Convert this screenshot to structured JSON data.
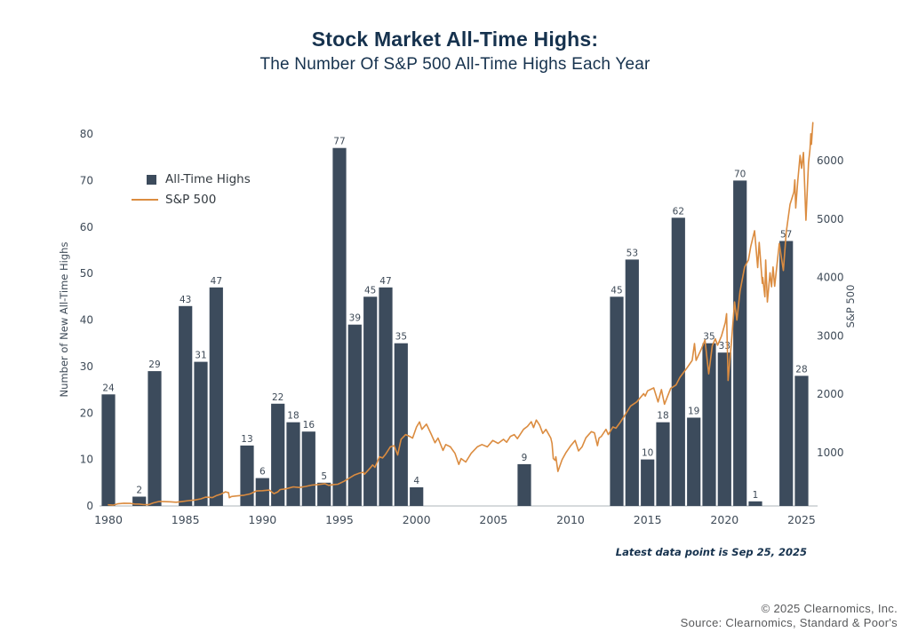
{
  "title": "Stock Market All-Time Highs:",
  "subtitle": "The Number Of S&P 500 All-Time Highs Each Year",
  "legend": {
    "bars_label": "All-Time Highs",
    "line_label": "S&P 500"
  },
  "footnote": "Latest data point is Sep 25, 2025",
  "attribution": {
    "line1": "© 2025 Clearnomics, Inc.",
    "line2": "Source: Clearnomics, Standard & Poor's"
  },
  "colors": {
    "bar": "#3C4B5C",
    "line": "#DB8C40",
    "navy": "#16324E",
    "tick": "#3E4A57",
    "bar_label": "#3E4A57",
    "axis_line": "#C9CDD1",
    "source_text": "#58595B"
  },
  "chart_data": {
    "type": "bar+line",
    "title": "Stock Market All-Time Highs: The Number Of S&P 500 All-Time Highs Each Year",
    "grid": false,
    "legend_position": "upper-left",
    "axes": {
      "x": {
        "ticks": [
          1980,
          1985,
          1990,
          1995,
          2000,
          2005,
          2010,
          2015,
          2020,
          2025
        ],
        "range": [
          1979.5,
          2026.2
        ]
      },
      "y_left": {
        "label": "Number of New All-Time Highs",
        "ticks": [
          0,
          10,
          20,
          30,
          40,
          50,
          60,
          70,
          80
        ],
        "range": [
          0,
          80
        ]
      },
      "y_right": {
        "label": "S&P 500",
        "ticks": [
          1000,
          2000,
          3000,
          4000,
          5000,
          6000
        ],
        "range": [
          0,
          6800
        ]
      }
    },
    "bar_series": {
      "name": "All-Time Highs",
      "axis": "left",
      "years": [
        1980,
        1981,
        1982,
        1983,
        1984,
        1985,
        1986,
        1987,
        1988,
        1989,
        1990,
        1991,
        1992,
        1993,
        1994,
        1995,
        1996,
        1997,
        1998,
        1999,
        2000,
        2001,
        2002,
        2003,
        2004,
        2005,
        2006,
        2007,
        2008,
        2009,
        2010,
        2011,
        2012,
        2013,
        2014,
        2015,
        2016,
        2017,
        2018,
        2019,
        2020,
        2021,
        2022,
        2023,
        2024,
        2025
      ],
      "values": [
        24,
        0,
        2,
        29,
        0,
        43,
        31,
        47,
        0,
        13,
        6,
        22,
        18,
        16,
        5,
        77,
        39,
        45,
        47,
        35,
        4,
        0,
        0,
        0,
        0,
        0,
        0,
        9,
        0,
        0,
        0,
        0,
        0,
        45,
        53,
        10,
        18,
        62,
        19,
        35,
        33,
        70,
        1,
        0,
        57,
        28
      ]
    },
    "line_series": {
      "name": "S&P 500",
      "axis": "right",
      "points": [
        [
          1980.0,
          108
        ],
        [
          1980.3,
          102
        ],
        [
          1980.6,
          125
        ],
        [
          1981.0,
          135
        ],
        [
          1981.4,
          132
        ],
        [
          1981.7,
          122
        ],
        [
          1982.0,
          120
        ],
        [
          1982.3,
          111
        ],
        [
          1982.6,
          110
        ],
        [
          1982.9,
          140
        ],
        [
          1983.3,
          165
        ],
        [
          1983.6,
          162
        ],
        [
          1984.0,
          160
        ],
        [
          1984.4,
          152
        ],
        [
          1984.8,
          166
        ],
        [
          1985.2,
          180
        ],
        [
          1985.6,
          190
        ],
        [
          1986.0,
          210
        ],
        [
          1986.3,
          238
        ],
        [
          1986.6,
          236
        ],
        [
          1986.75,
          231
        ],
        [
          1987.0,
          265
        ],
        [
          1987.3,
          290
        ],
        [
          1987.6,
          330
        ],
        [
          1987.8,
          316
        ],
        [
          1987.85,
          230
        ],
        [
          1988.0,
          250
        ],
        [
          1988.4,
          262
        ],
        [
          1988.8,
          272
        ],
        [
          1989.2,
          295
        ],
        [
          1989.6,
          345
        ],
        [
          1990.0,
          350
        ],
        [
          1990.45,
          360
        ],
        [
          1990.75,
          300
        ],
        [
          1991.0,
          330
        ],
        [
          1991.15,
          370
        ],
        [
          1991.5,
          380
        ],
        [
          1992.0,
          415
        ],
        [
          1992.4,
          405
        ],
        [
          1992.8,
          422
        ],
        [
          1993.2,
          445
        ],
        [
          1993.6,
          455
        ],
        [
          1994.05,
          470
        ],
        [
          1994.3,
          440
        ],
        [
          1994.6,
          455
        ],
        [
          1994.9,
          460
        ],
        [
          1995.3,
          510
        ],
        [
          1995.6,
          560
        ],
        [
          1995.95,
          615
        ],
        [
          1996.3,
          650
        ],
        [
          1996.55,
          665
        ],
        [
          1996.62,
          630
        ],
        [
          1997.0,
          740
        ],
        [
          1997.15,
          790
        ],
        [
          1997.3,
          750
        ],
        [
          1997.6,
          930
        ],
        [
          1997.8,
          910
        ],
        [
          1998.0,
          975
        ],
        [
          1998.3,
          1100
        ],
        [
          1998.55,
          1120
        ],
        [
          1998.78,
          960
        ],
        [
          1999.0,
          1230
        ],
        [
          1999.3,
          1310
        ],
        [
          1999.55,
          1280
        ],
        [
          1999.75,
          1250
        ],
        [
          2000.0,
          1440
        ],
        [
          2000.2,
          1527
        ],
        [
          2000.35,
          1400
        ],
        [
          2000.65,
          1490
        ],
        [
          2000.95,
          1320
        ],
        [
          2001.2,
          1170
        ],
        [
          2001.4,
          1250
        ],
        [
          2001.72,
          1040
        ],
        [
          2001.9,
          1140
        ],
        [
          2002.2,
          1100
        ],
        [
          2002.5,
          990
        ],
        [
          2002.75,
          800
        ],
        [
          2002.9,
          900
        ],
        [
          2003.2,
          840
        ],
        [
          2003.55,
          990
        ],
        [
          2003.95,
          1100
        ],
        [
          2004.25,
          1140
        ],
        [
          2004.6,
          1100
        ],
        [
          2004.95,
          1210
        ],
        [
          2005.3,
          1160
        ],
        [
          2005.65,
          1230
        ],
        [
          2005.85,
          1180
        ],
        [
          2006.1,
          1280
        ],
        [
          2006.35,
          1310
        ],
        [
          2006.55,
          1240
        ],
        [
          2006.95,
          1400
        ],
        [
          2007.2,
          1450
        ],
        [
          2007.45,
          1530
        ],
        [
          2007.6,
          1430
        ],
        [
          2007.78,
          1560
        ],
        [
          2008.0,
          1470
        ],
        [
          2008.2,
          1330
        ],
        [
          2008.4,
          1400
        ],
        [
          2008.72,
          1250
        ],
        [
          2008.8,
          1160
        ],
        [
          2008.88,
          900
        ],
        [
          2009.0,
          870
        ],
        [
          2009.05,
          930
        ],
        [
          2009.18,
          680
        ],
        [
          2009.45,
          880
        ],
        [
          2009.7,
          1000
        ],
        [
          2010.0,
          1115
        ],
        [
          2010.3,
          1210
        ],
        [
          2010.52,
          1030
        ],
        [
          2010.75,
          1100
        ],
        [
          2011.0,
          1255
        ],
        [
          2011.35,
          1360
        ],
        [
          2011.55,
          1340
        ],
        [
          2011.75,
          1120
        ],
        [
          2011.85,
          1250
        ],
        [
          2012.0,
          1280
        ],
        [
          2012.3,
          1400
        ],
        [
          2012.45,
          1310
        ],
        [
          2012.75,
          1440
        ],
        [
          2012.95,
          1420
        ],
        [
          2013.2,
          1510
        ],
        [
          2013.5,
          1630
        ],
        [
          2013.9,
          1800
        ],
        [
          2014.3,
          1870
        ],
        [
          2014.75,
          2010
        ],
        [
          2014.85,
          1970
        ],
        [
          2015.0,
          2060
        ],
        [
          2015.4,
          2110
        ],
        [
          2015.68,
          1870
        ],
        [
          2015.9,
          2080
        ],
        [
          2016.1,
          1830
        ],
        [
          2016.5,
          2100
        ],
        [
          2016.85,
          2160
        ],
        [
          2017.1,
          2290
        ],
        [
          2017.5,
          2430
        ],
        [
          2017.9,
          2580
        ],
        [
          2018.05,
          2870
        ],
        [
          2018.15,
          2580
        ],
        [
          2018.5,
          2780
        ],
        [
          2018.73,
          2930
        ],
        [
          2018.97,
          2350
        ],
        [
          2019.2,
          2830
        ],
        [
          2019.4,
          2950
        ],
        [
          2019.55,
          2840
        ],
        [
          2019.8,
          3000
        ],
        [
          2020.05,
          3230
        ],
        [
          2020.13,
          3380
        ],
        [
          2020.23,
          2237
        ],
        [
          2020.45,
          2900
        ],
        [
          2020.65,
          3580
        ],
        [
          2020.8,
          3270
        ],
        [
          2021.0,
          3760
        ],
        [
          2021.3,
          4180
        ],
        [
          2021.55,
          4300
        ],
        [
          2021.7,
          4530
        ],
        [
          2021.95,
          4800
        ],
        [
          2022.15,
          4170
        ],
        [
          2022.25,
          4600
        ],
        [
          2022.45,
          3900
        ],
        [
          2022.48,
          4000
        ],
        [
          2022.62,
          3670
        ],
        [
          2022.67,
          4300
        ],
        [
          2022.78,
          3580
        ],
        [
          2022.95,
          4080
        ],
        [
          2023.05,
          3840
        ],
        [
          2023.15,
          4180
        ],
        [
          2023.25,
          3850
        ],
        [
          2023.55,
          4580
        ],
        [
          2023.82,
          4120
        ],
        [
          2024.0,
          4770
        ],
        [
          2024.25,
          5250
        ],
        [
          2024.5,
          5460
        ],
        [
          2024.56,
          5670
        ],
        [
          2024.62,
          5190
        ],
        [
          2024.75,
          5650
        ],
        [
          2024.9,
          6090
        ],
        [
          2025.0,
          5870
        ],
        [
          2025.12,
          6140
        ],
        [
          2025.28,
          4980
        ],
        [
          2025.45,
          5960
        ],
        [
          2025.55,
          6200
        ],
        [
          2025.6,
          6460
        ],
        [
          2025.64,
          6280
        ],
        [
          2025.73,
          6650
        ]
      ]
    }
  }
}
